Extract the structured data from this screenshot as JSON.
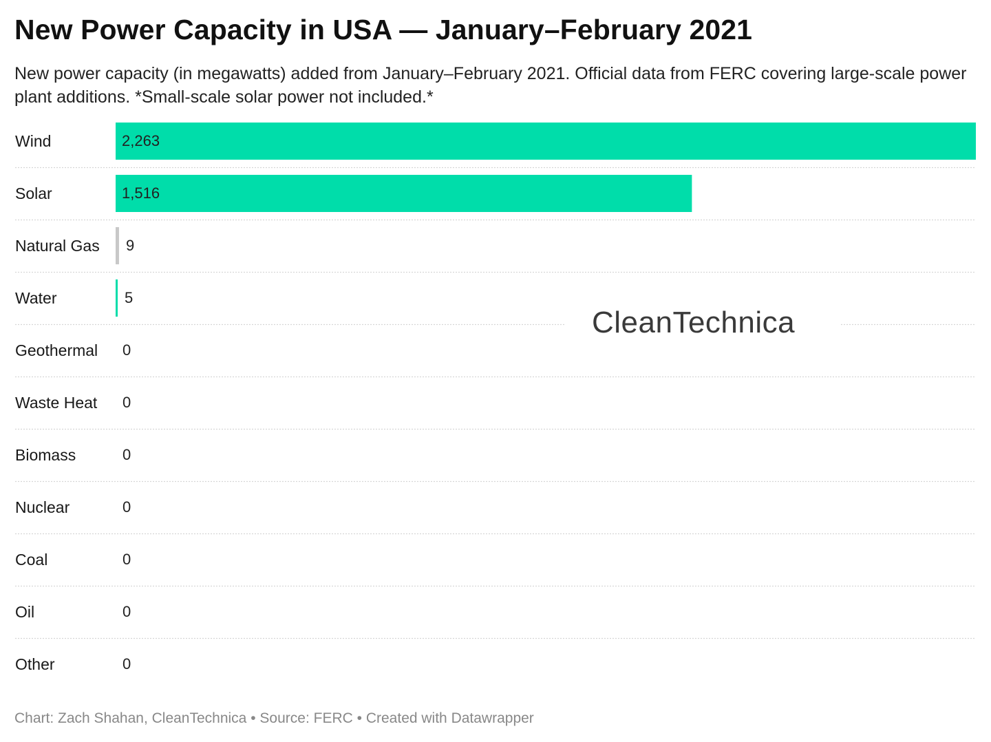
{
  "title": "New Power Capacity in USA — January–February 2021",
  "subtitle": "New power capacity (in megawatts) added from January–February 2021. Official data from FERC covering large-scale power plant additions. *Small-scale solar power not included.*",
  "footer": {
    "chart_credit": "Chart: Zach Shahan, CleanTechnica",
    "separator": "•",
    "source": "Source: FERC",
    "created_with": "Created with Datawrapper"
  },
  "watermark": {
    "text": "CleanTechnica"
  },
  "colors": {
    "bar_green": "#00ddaa",
    "bar_gray": "#c8c8c8",
    "gridline": "#d6d6d6"
  },
  "chart_data": {
    "type": "bar",
    "orientation": "horizontal",
    "title": "New Power Capacity in USA — January–February 2021",
    "xlabel": "",
    "ylabel": "",
    "xlim": [
      0,
      2263
    ],
    "grid": false,
    "categories": [
      "Wind",
      "Solar",
      "Natural Gas",
      "Water",
      "Geothermal",
      "Waste Heat",
      "Biomass",
      "Nuclear",
      "Coal",
      "Oil",
      "Other"
    ],
    "values": [
      2263,
      1516,
      9,
      5,
      0,
      0,
      0,
      0,
      0,
      0,
      0
    ],
    "value_labels": [
      "2,263",
      "1,516",
      "9",
      "5",
      "0",
      "0",
      "0",
      "0",
      "0",
      "0",
      "0"
    ],
    "bar_colors": [
      "#00ddaa",
      "#00ddaa",
      "#c8c8c8",
      "#00ddaa",
      "#00ddaa",
      "#00ddaa",
      "#00ddaa",
      "#00ddaa",
      "#00ddaa",
      "#00ddaa",
      "#00ddaa"
    ]
  }
}
